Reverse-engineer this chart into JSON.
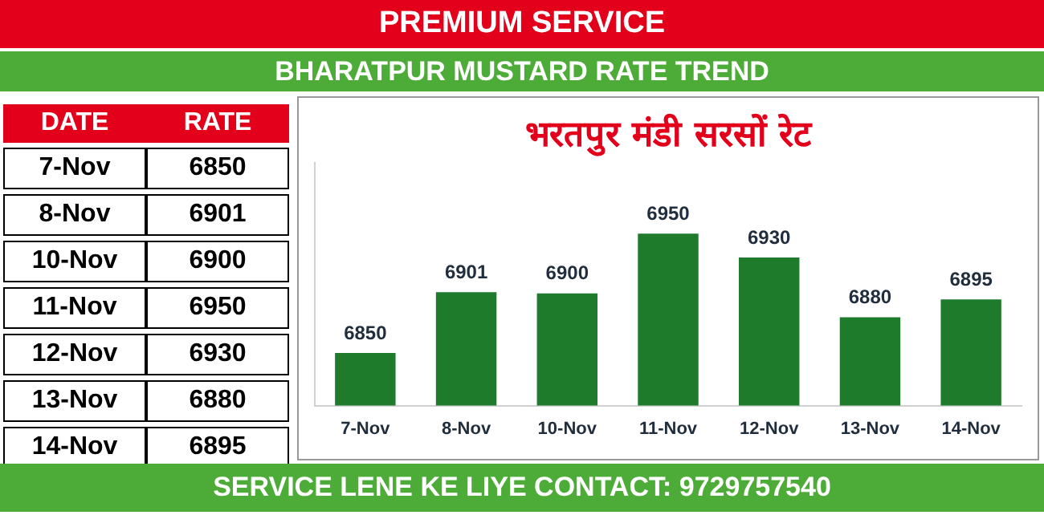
{
  "chart_data": {
    "type": "bar",
    "title": "PREMIUM SERVICE",
    "subtitle": "BHARATPUR MUSTARD RATE TREND",
    "annotations": [
      "भरतपुर मंडी सरसों रेट",
      "DATE",
      "RATE",
      "SERVICE LENE KE LIYE CONTACT: 9729757540"
    ],
    "categories": [
      "7-Nov",
      "8-Nov",
      "10-Nov",
      "11-Nov",
      "12-Nov",
      "13-Nov",
      "14-Nov"
    ],
    "values": [
      6850,
      6901,
      6900,
      6950,
      6930,
      6880,
      6895
    ],
    "color": "#1e7b2c",
    "ylim": [
      6806,
      7010
    ],
    "tick_labels": "x",
    "value_labels": [
      "6850",
      "6901",
      "6900",
      "6950",
      "6930",
      "6880",
      "6895"
    ],
    "grid": false,
    "legend": false
  }
}
